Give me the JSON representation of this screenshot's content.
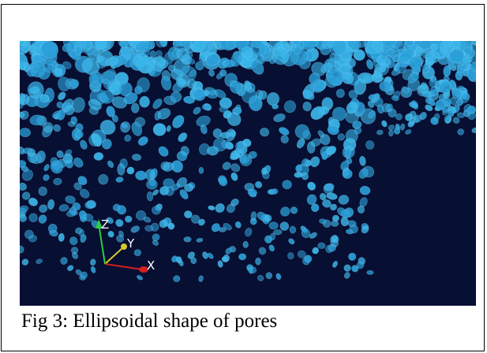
{
  "figure": {
    "caption": "Fig 3: Ellipsoidal shape of pores",
    "axis_labels": {
      "z": "Z",
      "y": "Y",
      "x": "X"
    }
  }
}
